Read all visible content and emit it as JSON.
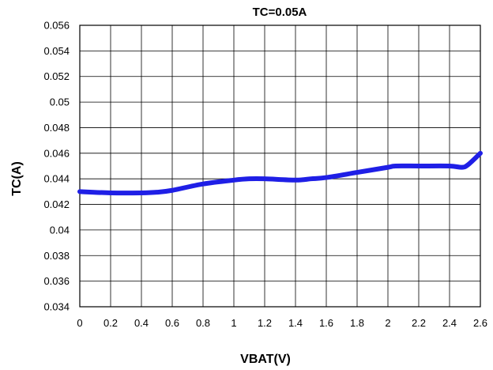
{
  "chart_data": {
    "type": "line",
    "title": "TC=0.05A",
    "xlabel": "VBAT(V)",
    "ylabel": "TC(A)",
    "xlim": [
      0,
      2.6
    ],
    "ylim": [
      0.034,
      0.056
    ],
    "grid": true,
    "x_ticks": [
      "0",
      "0.2",
      "0.4",
      "0.6",
      "0.8",
      "1",
      "1.2",
      "1.4",
      "1.6",
      "1.8",
      "2",
      "2.2",
      "2.4",
      "2.6"
    ],
    "y_ticks": [
      "0.034",
      "0.036",
      "0.038",
      "0.04",
      "0.042",
      "0.044",
      "0.046",
      "0.048",
      "0.05",
      "0.052",
      "0.054",
      "0.056"
    ],
    "line_color": "#1f1fe6",
    "series": [
      {
        "x": [
          0,
          0.2,
          0.4,
          0.5,
          0.6,
          0.8,
          1.0,
          1.1,
          1.2,
          1.4,
          1.5,
          1.6,
          1.8,
          2.0,
          2.05,
          2.2,
          2.4,
          2.48,
          2.52,
          2.6
        ],
        "y": [
          0.043,
          0.0429,
          0.0429,
          0.04295,
          0.0431,
          0.0436,
          0.0439,
          0.044,
          0.044,
          0.0439,
          0.044,
          0.0441,
          0.0445,
          0.0449,
          0.045,
          0.045,
          0.045,
          0.0449,
          0.0451,
          0.046
        ]
      }
    ]
  }
}
